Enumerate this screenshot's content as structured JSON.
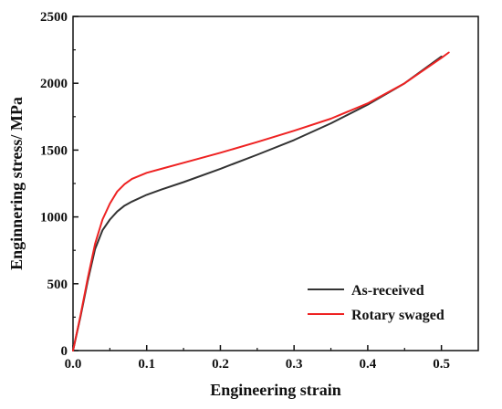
{
  "chart_data": {
    "type": "line",
    "title": "",
    "xlabel": "Engineering strain",
    "ylabel": "Enginnering stress/ MPa",
    "xlim": [
      0.0,
      0.55
    ],
    "ylim": [
      0,
      2500
    ],
    "xticks": [
      0.0,
      0.1,
      0.2,
      0.3,
      0.4,
      0.5
    ],
    "xtick_labels": [
      "0.0",
      "0.1",
      "0.2",
      "0.3",
      "0.4",
      "0.5"
    ],
    "yticks": [
      0,
      500,
      1000,
      1500,
      2000,
      2500
    ],
    "ytick_labels": [
      "0",
      "500",
      "1000",
      "1500",
      "2000",
      "2500"
    ],
    "grid": false,
    "legend_position": "bottom-right",
    "series": [
      {
        "name": "As-received",
        "color": "#333333",
        "x": [
          0.0,
          0.01,
          0.02,
          0.03,
          0.04,
          0.05,
          0.06,
          0.07,
          0.08,
          0.1,
          0.12,
          0.15,
          0.2,
          0.25,
          0.3,
          0.35,
          0.4,
          0.45,
          0.5
        ],
        "y": [
          0,
          250,
          520,
          760,
          900,
          980,
          1040,
          1085,
          1115,
          1165,
          1205,
          1260,
          1360,
          1465,
          1575,
          1700,
          1840,
          2000,
          2200
        ]
      },
      {
        "name": "Rotary swaged",
        "color": "#ee2222",
        "x": [
          0.0,
          0.01,
          0.02,
          0.03,
          0.04,
          0.05,
          0.06,
          0.07,
          0.08,
          0.1,
          0.12,
          0.15,
          0.2,
          0.25,
          0.3,
          0.35,
          0.4,
          0.45,
          0.5,
          0.51
        ],
        "y": [
          0,
          260,
          540,
          800,
          980,
          1100,
          1190,
          1245,
          1285,
          1330,
          1360,
          1405,
          1480,
          1560,
          1645,
          1735,
          1850,
          2000,
          2190,
          2230
        ]
      }
    ]
  }
}
